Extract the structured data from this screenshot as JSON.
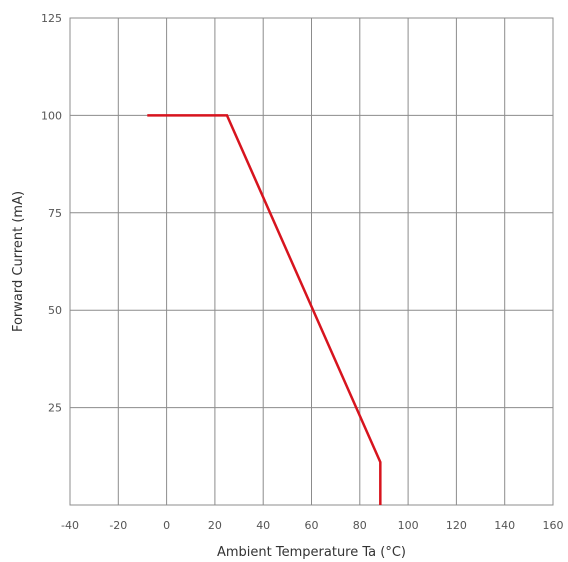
{
  "chart_data": {
    "type": "line",
    "title": "",
    "xlabel": "Ambient Temperature Ta (°C)",
    "ylabel": "Forward Current (mA)",
    "xlim": [
      -40,
      160
    ],
    "ylim": [
      0,
      125
    ],
    "x_ticks": [
      -40,
      -20,
      0,
      20,
      40,
      60,
      80,
      100,
      120,
      140,
      160
    ],
    "y_ticks": [
      25,
      50,
      75,
      100,
      125
    ],
    "grid": true,
    "colors": {
      "line": "#d7141e",
      "grid": "#8c8c8c",
      "frame": "#8c8c8c"
    },
    "series": [
      {
        "x": [
          -8,
          25,
          88.5,
          88.5
        ],
        "y": [
          100,
          100,
          11,
          0
        ]
      }
    ]
  }
}
